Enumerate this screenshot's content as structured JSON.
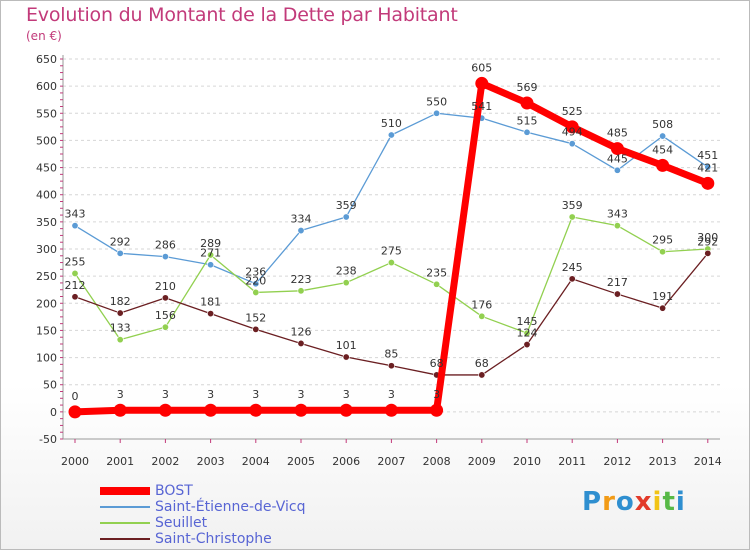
{
  "chart_data": {
    "type": "line",
    "title": "Evolution du Montant de la Dette par Habitant",
    "subtitle": "(en €)",
    "xlabel": "",
    "ylabel": "",
    "x": [
      "2000",
      "2001",
      "2002",
      "2003",
      "2004",
      "2005",
      "2006",
      "2007",
      "2008",
      "2009",
      "2010",
      "2011",
      "2012",
      "2013",
      "2014"
    ],
    "ylim": [
      -50,
      650
    ],
    "yticks": [
      -50,
      0,
      50,
      100,
      150,
      200,
      250,
      300,
      350,
      400,
      450,
      500,
      550,
      600,
      650
    ],
    "grid": "horizontal dashed",
    "legend": "bottom-left",
    "series": [
      {
        "name": "BOST",
        "color": "#ff0000",
        "values": [
          0,
          3,
          3,
          3,
          3,
          3,
          3,
          3,
          3,
          605,
          569,
          525,
          485,
          454,
          421
        ]
      },
      {
        "name": "Saint-Étienne-de-Vicq",
        "color": "#5b9bd5",
        "values": [
          343,
          292,
          286,
          271,
          236,
          334,
          359,
          510,
          550,
          541,
          515,
          494,
          445,
          508,
          451
        ]
      },
      {
        "name": "Seuillet",
        "color": "#92d050",
        "values": [
          255,
          133,
          156,
          289,
          220,
          223,
          238,
          275,
          235,
          176,
          145,
          359,
          343,
          295,
          300
        ]
      },
      {
        "name": "Saint-Christophe",
        "color": "#6b1f22",
        "values": [
          212,
          182,
          210,
          181,
          152,
          126,
          101,
          85,
          68,
          68,
          124,
          245,
          217,
          191,
          292
        ]
      }
    ]
  },
  "logo": {
    "letters": [
      "P",
      "r",
      "o",
      "x",
      "i",
      "t",
      "i"
    ]
  }
}
